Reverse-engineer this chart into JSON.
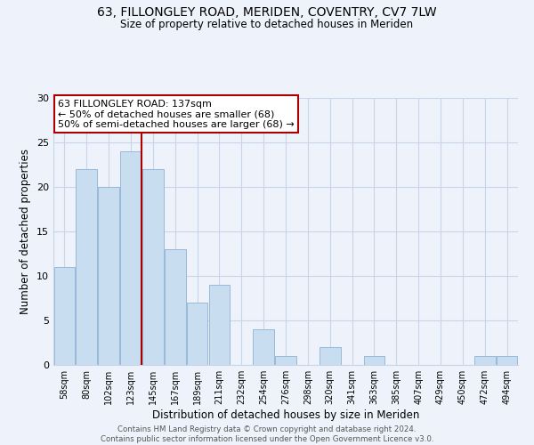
{
  "title1": "63, FILLONGLEY ROAD, MERIDEN, COVENTRY, CV7 7LW",
  "title2": "Size of property relative to detached houses in Meriden",
  "xlabel": "Distribution of detached houses by size in Meriden",
  "ylabel": "Number of detached properties",
  "categories": [
    "58sqm",
    "80sqm",
    "102sqm",
    "123sqm",
    "145sqm",
    "167sqm",
    "189sqm",
    "211sqm",
    "232sqm",
    "254sqm",
    "276sqm",
    "298sqm",
    "320sqm",
    "341sqm",
    "363sqm",
    "385sqm",
    "407sqm",
    "429sqm",
    "450sqm",
    "472sqm",
    "494sqm"
  ],
  "values": [
    11,
    22,
    20,
    24,
    22,
    13,
    7,
    9,
    0,
    4,
    1,
    0,
    2,
    0,
    1,
    0,
    0,
    0,
    0,
    1,
    1
  ],
  "bar_color": "#c8ddf0",
  "bar_edge_color": "#9ab8d8",
  "highlight_line_color": "#aa0000",
  "annotation_title": "63 FILLONGLEY ROAD: 137sqm",
  "annotation_line1": "← 50% of detached houses are smaller (68)",
  "annotation_line2": "50% of semi-detached houses are larger (68) →",
  "annotation_box_color": "#ffffff",
  "annotation_box_edge": "#aa0000",
  "ylim": [
    0,
    30
  ],
  "yticks": [
    0,
    5,
    10,
    15,
    20,
    25,
    30
  ],
  "footer1": "Contains HM Land Registry data © Crown copyright and database right 2024.",
  "footer2": "Contains public sector information licensed under the Open Government Licence v3.0.",
  "bg_color": "#eef3fb",
  "grid_color": "#c8d4e8"
}
